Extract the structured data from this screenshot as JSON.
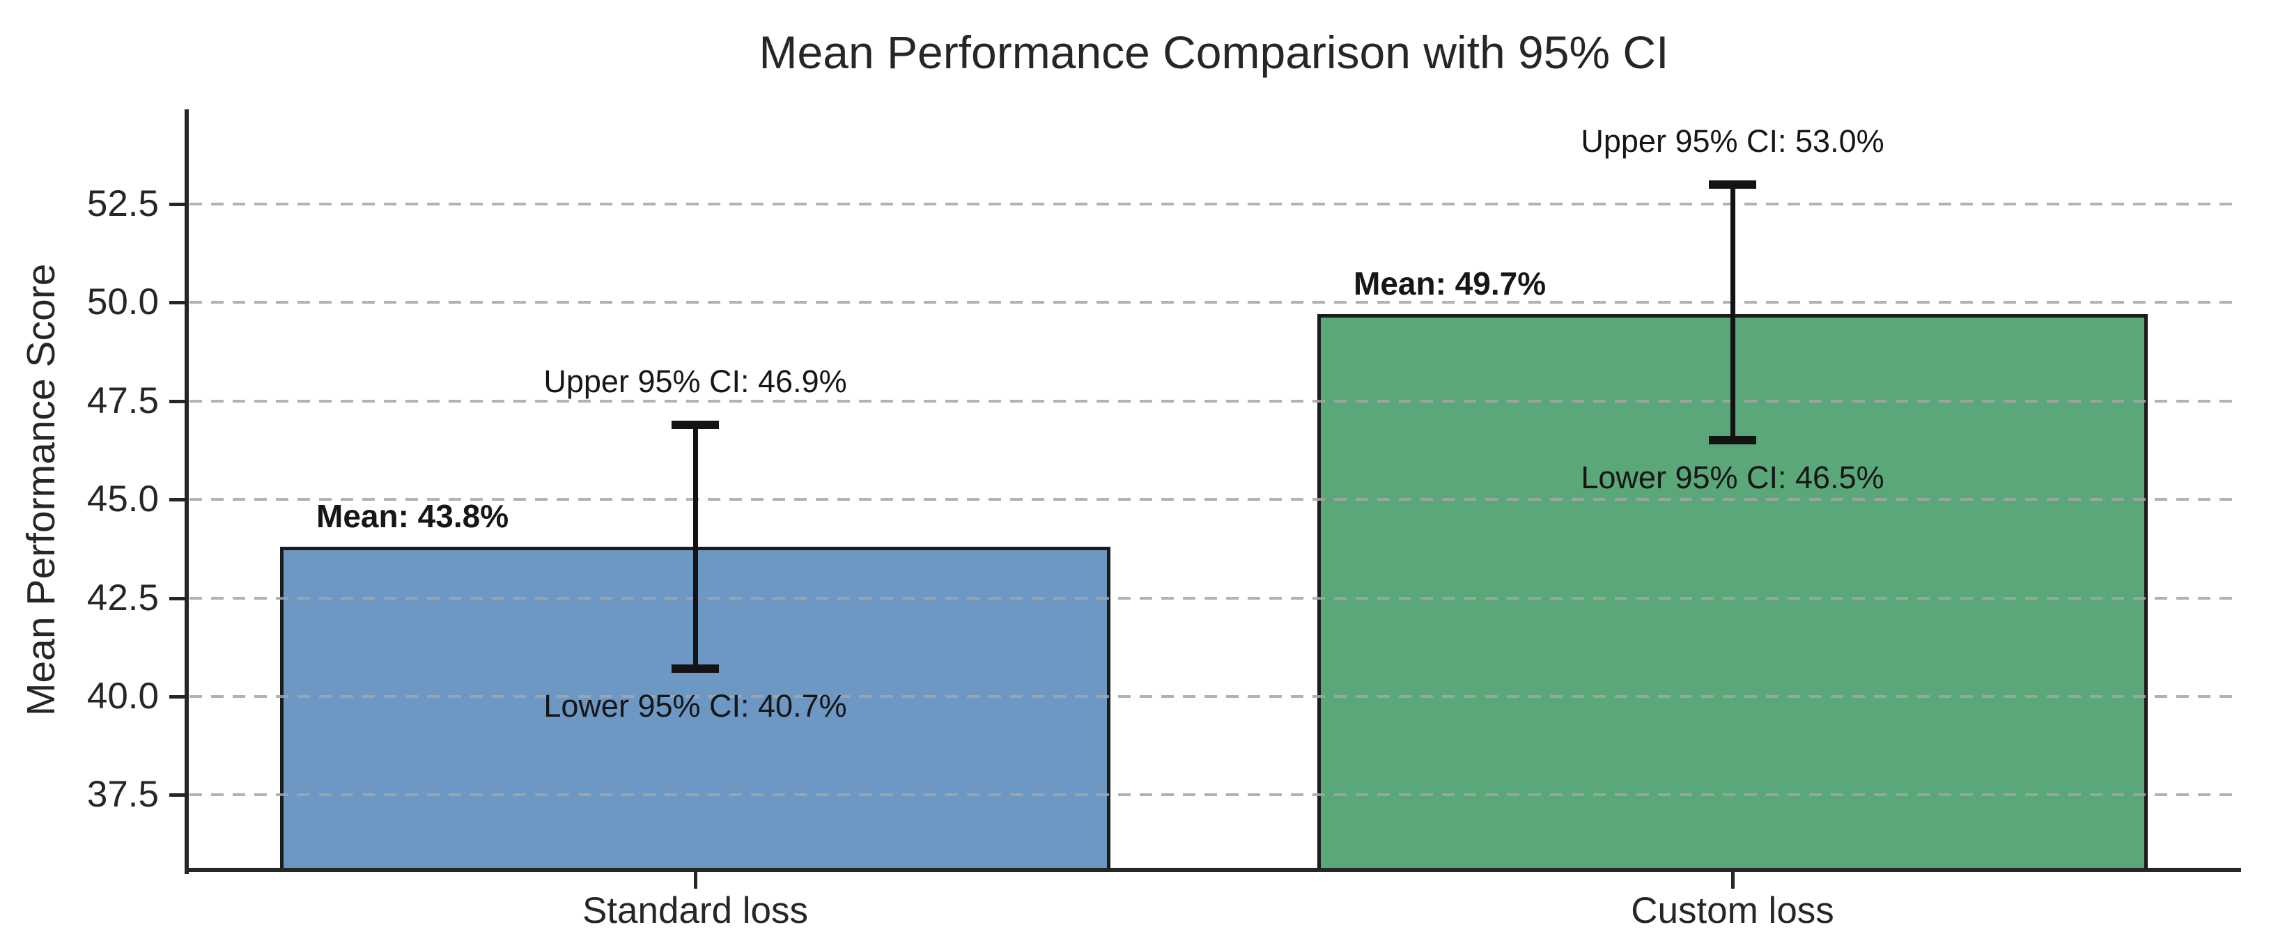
{
  "chart_data": {
    "type": "bar",
    "title": "Mean Performance Comparison with 95% CI",
    "xlabel": "",
    "ylabel": "Mean Performance Score",
    "categories": [
      "Standard loss",
      "Custom loss"
    ],
    "series": [
      {
        "name": "Mean Performance Score",
        "values": [
          43.8,
          49.7
        ],
        "ci_lower": [
          40.7,
          46.5
        ],
        "ci_upper": [
          46.9,
          53.0
        ]
      }
    ],
    "annotations": [
      {
        "mean_label": "Mean: 43.8%",
        "upper_label": "Upper 95% CI: 46.9%",
        "lower_label": "Lower 95% CI: 40.7%"
      },
      {
        "mean_label": "Mean: 49.7%",
        "upper_label": "Upper 95% CI: 53.0%",
        "lower_label": "Lower 95% CI: 46.5%"
      }
    ],
    "ytick_labels": [
      "37.5",
      "40.0",
      "42.5",
      "45.0",
      "47.5",
      "50.0",
      "52.5"
    ],
    "ylim": [
      35.6,
      54.9
    ],
    "xlim": [
      -0.49,
      1.49
    ],
    "bar_width": 0.8,
    "grid": "horizontal-dashed",
    "legend": "none",
    "bar_colors": [
      "#6d98c3",
      "#5aa77a"
    ],
    "bar_edge_color": "#1c1c1c",
    "error_bar_color": "#131313",
    "grid_color": "#a5a5a5",
    "axis_color": "#262626",
    "text_color": "#1f1f1f",
    "background_color": "#ffffff"
  }
}
